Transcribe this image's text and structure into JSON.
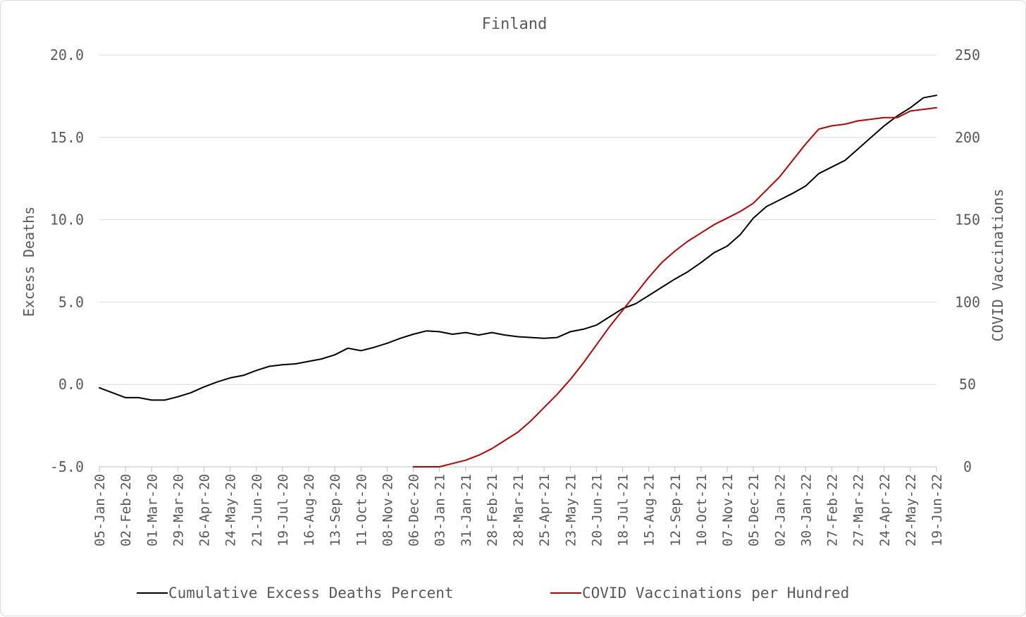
{
  "chart_data": {
    "type": "line",
    "title": "Finland",
    "ylabel": "Excess Deaths",
    "y2label": "COVID Vaccinations",
    "ylim": [
      -5,
      20
    ],
    "y_ticks": [
      -5,
      0,
      5,
      10,
      15,
      20
    ],
    "y_tick_labels": [
      "-5.0",
      "0.0",
      "5.0",
      "10.0",
      "15.0",
      "20.0"
    ],
    "y2lim": [
      0,
      250
    ],
    "y2_ticks": [
      0,
      50,
      100,
      150,
      200,
      250
    ],
    "y2_tick_labels": [
      "0",
      "50",
      "100",
      "150",
      "200",
      "250"
    ],
    "x_tick_labels": [
      "05-Jan-20",
      "02-Feb-20",
      "01-Mar-20",
      "29-Mar-20",
      "26-Apr-20",
      "24-May-20",
      "21-Jun-20",
      "19-Jul-20",
      "16-Aug-20",
      "13-Sep-20",
      "11-Oct-20",
      "08-Nov-20",
      "06-Dec-20",
      "03-Jan-21",
      "31-Jan-21",
      "28-Feb-21",
      "28-Mar-21",
      "25-Apr-21",
      "23-May-21",
      "20-Jun-21",
      "18-Jul-21",
      "15-Aug-21",
      "12-Sep-21",
      "10-Oct-21",
      "07-Nov-21",
      "05-Dec-21",
      "02-Jan-22",
      "30-Jan-22",
      "27-Feb-22",
      "27-Mar-22",
      "24-Apr-22",
      "22-May-22",
      "19-Jun-22"
    ],
    "grid": true,
    "legend": "bottom",
    "series": [
      {
        "name": "Cumulative Excess Deaths Percent",
        "axis": "left",
        "color": "#000000",
        "points": [
          [
            "05-Jan-20",
            -0.2
          ],
          [
            "19-Jan-20",
            -0.5
          ],
          [
            "02-Feb-20",
            -0.8
          ],
          [
            "16-Feb-20",
            -0.8
          ],
          [
            "01-Mar-20",
            -0.95
          ],
          [
            "15-Mar-20",
            -0.95
          ],
          [
            "29-Mar-20",
            -0.75
          ],
          [
            "12-Apr-20",
            -0.5
          ],
          [
            "26-Apr-20",
            -0.15
          ],
          [
            "10-May-20",
            0.15
          ],
          [
            "24-May-20",
            0.4
          ],
          [
            "07-Jun-20",
            0.55
          ],
          [
            "21-Jun-20",
            0.85
          ],
          [
            "05-Jul-20",
            1.1
          ],
          [
            "19-Jul-20",
            1.2
          ],
          [
            "02-Aug-20",
            1.25
          ],
          [
            "16-Aug-20",
            1.4
          ],
          [
            "30-Aug-20",
            1.55
          ],
          [
            "13-Sep-20",
            1.8
          ],
          [
            "27-Sep-20",
            2.2
          ],
          [
            "11-Oct-20",
            2.05
          ],
          [
            "25-Oct-20",
            2.25
          ],
          [
            "08-Nov-20",
            2.5
          ],
          [
            "22-Nov-20",
            2.8
          ],
          [
            "06-Dec-20",
            3.05
          ],
          [
            "20-Dec-20",
            3.25
          ],
          [
            "03-Jan-21",
            3.2
          ],
          [
            "17-Jan-21",
            3.05
          ],
          [
            "31-Jan-21",
            3.15
          ],
          [
            "14-Feb-21",
            3.0
          ],
          [
            "28-Feb-21",
            3.15
          ],
          [
            "14-Mar-21",
            3.0
          ],
          [
            "28-Mar-21",
            2.9
          ],
          [
            "11-Apr-21",
            2.85
          ],
          [
            "25-Apr-21",
            2.8
          ],
          [
            "09-May-21",
            2.85
          ],
          [
            "23-May-21",
            3.2
          ],
          [
            "06-Jun-21",
            3.35
          ],
          [
            "20-Jun-21",
            3.6
          ],
          [
            "04-Jul-21",
            4.1
          ],
          [
            "18-Jul-21",
            4.6
          ],
          [
            "01-Aug-21",
            4.9
          ],
          [
            "15-Aug-21",
            5.4
          ],
          [
            "29-Aug-21",
            5.9
          ],
          [
            "12-Sep-21",
            6.4
          ],
          [
            "26-Sep-21",
            6.85
          ],
          [
            "10-Oct-21",
            7.4
          ],
          [
            "24-Oct-21",
            8.0
          ],
          [
            "07-Nov-21",
            8.4
          ],
          [
            "21-Nov-21",
            9.1
          ],
          [
            "05-Dec-21",
            10.1
          ],
          [
            "19-Dec-21",
            10.8
          ],
          [
            "02-Jan-22",
            11.2
          ],
          [
            "16-Jan-22",
            11.6
          ],
          [
            "30-Jan-22",
            12.05
          ],
          [
            "13-Feb-22",
            12.8
          ],
          [
            "27-Feb-22",
            13.2
          ],
          [
            "13-Mar-22",
            13.6
          ],
          [
            "27-Mar-22",
            14.3
          ],
          [
            "10-Apr-22",
            15.0
          ],
          [
            "24-Apr-22",
            15.7
          ],
          [
            "08-May-22",
            16.3
          ],
          [
            "22-May-22",
            16.8
          ],
          [
            "05-Jun-22",
            17.4
          ],
          [
            "19-Jun-22",
            17.55
          ]
        ]
      },
      {
        "name": "COVID Vaccinations per Hundred",
        "axis": "right",
        "color": "#c00000",
        "points": [
          [
            "06-Dec-20",
            0
          ],
          [
            "20-Dec-20",
            0
          ],
          [
            "03-Jan-21",
            0
          ],
          [
            "17-Jan-21",
            2
          ],
          [
            "31-Jan-21",
            4
          ],
          [
            "14-Feb-21",
            7
          ],
          [
            "28-Feb-21",
            11
          ],
          [
            "14-Mar-21",
            16
          ],
          [
            "28-Mar-21",
            21
          ],
          [
            "11-Apr-21",
            28
          ],
          [
            "25-Apr-21",
            36
          ],
          [
            "09-May-21",
            44
          ],
          [
            "23-May-21",
            53
          ],
          [
            "06-Jun-21",
            63
          ],
          [
            "20-Jun-21",
            74
          ],
          [
            "04-Jul-21",
            85
          ],
          [
            "18-Jul-21",
            95
          ],
          [
            "01-Aug-21",
            105
          ],
          [
            "15-Aug-21",
            115
          ],
          [
            "29-Aug-21",
            124
          ],
          [
            "12-Sep-21",
            131
          ],
          [
            "26-Sep-21",
            137
          ],
          [
            "10-Oct-21",
            142
          ],
          [
            "24-Oct-21",
            147
          ],
          [
            "07-Nov-21",
            151
          ],
          [
            "21-Nov-21",
            155
          ],
          [
            "05-Dec-21",
            160
          ],
          [
            "19-Dec-21",
            168
          ],
          [
            "02-Jan-22",
            176
          ],
          [
            "16-Jan-22",
            186
          ],
          [
            "30-Jan-22",
            196
          ],
          [
            "13-Feb-22",
            205
          ],
          [
            "27-Feb-22",
            207
          ],
          [
            "13-Mar-22",
            208
          ],
          [
            "27-Mar-22",
            210
          ],
          [
            "10-Apr-22",
            211
          ],
          [
            "24-Apr-22",
            212
          ],
          [
            "08-May-22",
            212
          ],
          [
            "22-May-22",
            216
          ],
          [
            "05-Jun-22",
            217
          ],
          [
            "19-Jun-22",
            218
          ]
        ]
      }
    ]
  }
}
